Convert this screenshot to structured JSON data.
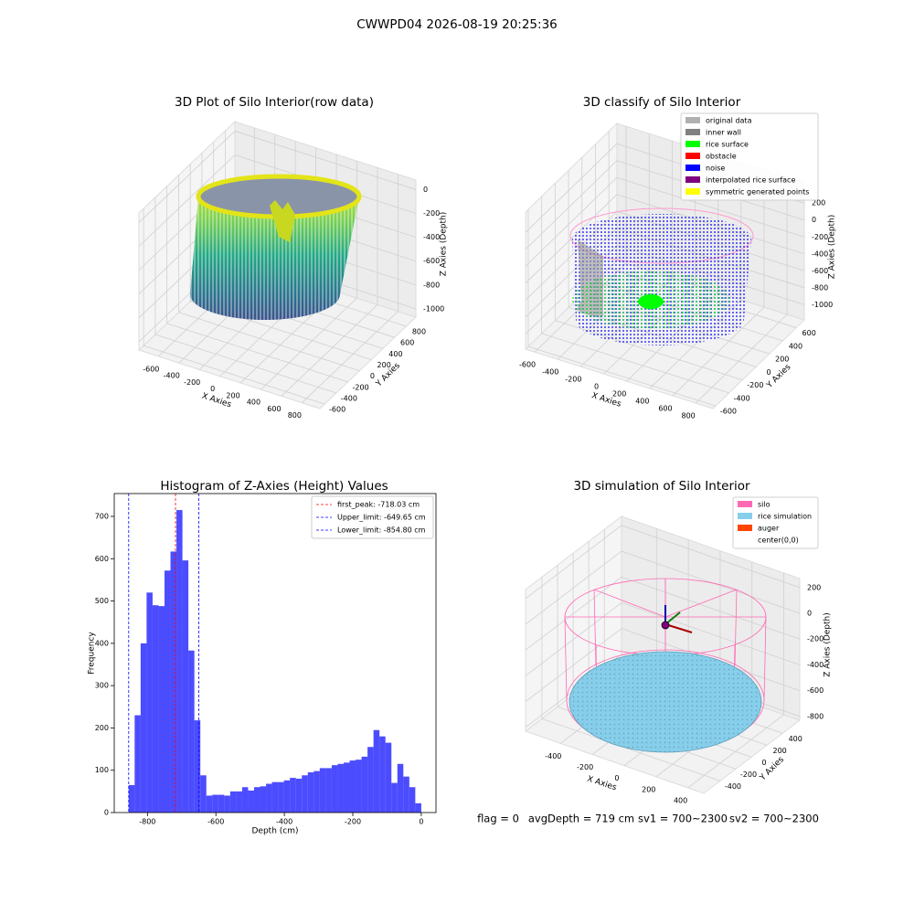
{
  "title": "CWWPD04 2026-08-19 20:25:36",
  "chart_data": [
    {
      "type": "scatter3d",
      "title": "3D Plot of Silo Interior(row data)",
      "xlabel": "X Axies",
      "ylabel": "Y Axies",
      "zlabel": "Z Axies (Depth)",
      "xlim": [
        -790,
        975
      ],
      "ylim": [
        -680,
        965
      ],
      "zlim": [
        -1070,
        80
      ],
      "xticks": [
        -600,
        -400,
        -200,
        0,
        200,
        400,
        600,
        800
      ],
      "yticks": [
        -600,
        -400,
        -200,
        0,
        200,
        400,
        600,
        800
      ],
      "zticks": [
        -1000,
        -800,
        -600,
        -400,
        -200,
        0
      ]
    },
    {
      "type": "scatter3d",
      "title": "3D classify of Silo Interior",
      "xlabel": "X Axies",
      "ylabel": "Y Axies",
      "zlabel": "Z Axies (Depth)",
      "xlim": [
        -680,
        950
      ],
      "ylim": [
        -640,
        720
      ],
      "zlim": [
        -1180,
        440
      ],
      "xticks": [
        -600,
        -400,
        -200,
        0,
        200,
        400,
        600,
        800
      ],
      "yticks": [
        -600,
        -400,
        -200,
        0,
        200,
        400,
        600
      ],
      "zticks": [
        -1000,
        -800,
        -600,
        -400,
        -200,
        0,
        200
      ],
      "legend": [
        {
          "name": "original data",
          "color": "#b0b0b0"
        },
        {
          "name": "inner wall",
          "color": "#808080"
        },
        {
          "name": "rice surface",
          "color": "#00ff00"
        },
        {
          "name": "obstacle",
          "color": "#ff0000"
        },
        {
          "name": "noise",
          "color": "#0000ff"
        },
        {
          "name": "interpolated rice surface",
          "color": "#800080"
        },
        {
          "name": "symmetric generated points",
          "color": "#ffff00"
        }
      ]
    },
    {
      "type": "histogram",
      "title": "Histogram of Z-Axies (Height) Values",
      "xlabel": "Depth (cm)",
      "ylabel": "Frequency",
      "color": "#0000ff",
      "bins": [
        -854.8,
        -837.36,
        -819.91,
        -802.47,
        -785.02,
        -767.58,
        -750.13,
        -732.69,
        -715.24,
        -697.8,
        -680.35,
        -662.91,
        -645.46,
        -628.02,
        -610.57,
        -593.13,
        -575.68,
        -558.24,
        -540.79,
        -523.35,
        -505.9,
        -488.46,
        -471.01,
        -453.57,
        -436.12,
        -418.68,
        -401.24,
        -383.79,
        -366.35,
        -348.9,
        -331.46,
        -314.01,
        -296.57,
        -279.12,
        -261.68,
        -244.23,
        -226.79,
        -209.34,
        -191.9,
        -174.45,
        -157.01,
        -139.56,
        -122.12,
        -104.67,
        -87.23,
        -69.78,
        -52.34,
        -34.89,
        -17.45,
        0
      ],
      "values": [
        65,
        230,
        400,
        520,
        490,
        488,
        572,
        617,
        715,
        596,
        383,
        218,
        88,
        40,
        42,
        42,
        40,
        50,
        50,
        60,
        52,
        60,
        62,
        68,
        72,
        72,
        76,
        82,
        80,
        88,
        95,
        98,
        105,
        105,
        112,
        115,
        118,
        123,
        125,
        132,
        155,
        195,
        180,
        165,
        70,
        115,
        85,
        60,
        22
      ],
      "xlim": [
        -897,
        43
      ],
      "ylim": [
        0,
        754
      ],
      "xticks": [
        -800,
        -600,
        -400,
        -200,
        0
      ],
      "yticks": [
        0,
        100,
        200,
        300,
        400,
        500,
        600,
        700
      ],
      "vlines": [
        {
          "label": "first_peak: -718.03 cm",
          "value": -718.03,
          "color": "#ff0000"
        },
        {
          "label": "Upper_limit: -649.65 cm",
          "value": -649.65,
          "color": "#0000ff"
        },
        {
          "label": "Lower_limit: -854.80 cm",
          "value": -854.8,
          "color": "#0000ff"
        }
      ]
    },
    {
      "type": "scatter3d",
      "title": "3D simulation of Silo Interior",
      "xlabel": "X Axies",
      "ylabel": "Y Axies",
      "zlabel": "Z Axies (Depth)",
      "xlim": [
        -620,
        500
      ],
      "ylim": [
        -610,
        620
      ],
      "zlim": [
        -830,
        270
      ],
      "xticks": [
        -400,
        -200,
        0,
        200,
        400
      ],
      "yticks": [
        -400,
        -200,
        0,
        200,
        400
      ],
      "zticks": [
        -800,
        -600,
        -400,
        -200,
        0,
        200
      ],
      "legend": [
        {
          "name": "silo",
          "color": "#ff69b4"
        },
        {
          "name": "rice simulation",
          "color": "#87ceeb"
        },
        {
          "name": "auger",
          "color": "#ff4500"
        },
        {
          "name": "center(0,0)",
          "color": "#ffffff"
        }
      ]
    }
  ],
  "footer": [
    "flag = 0",
    "avgDepth = 719 cm",
    "sv1 = 700~2300",
    "sv2 = 700~2300"
  ]
}
